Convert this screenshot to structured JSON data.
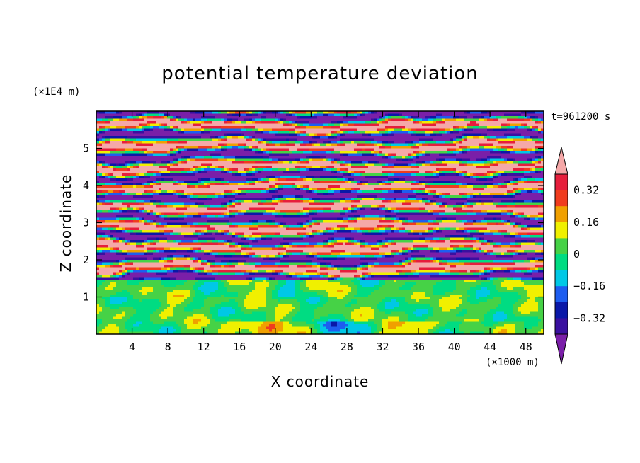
{
  "chart_data": {
    "type": "heatmap",
    "title": "potential temperature deviation",
    "xlabel": "X coordinate",
    "ylabel": "Z coordinate",
    "x_unit": "(×1000 m)",
    "y_unit": "(×1E4 m)",
    "time_label": "t=961200 s",
    "x_range": [
      0,
      50
    ],
    "y_range": [
      0,
      6
    ],
    "x_ticks": [
      4,
      8,
      12,
      16,
      20,
      24,
      28,
      32,
      36,
      40,
      44,
      48
    ],
    "y_ticks": [
      1,
      2,
      3,
      4,
      5
    ],
    "colorbar": {
      "levels": [
        -0.4,
        -0.32,
        -0.24,
        -0.16,
        -0.08,
        0,
        0.08,
        0.16,
        0.24,
        0.32,
        0.4
      ],
      "colors": [
        "#7a1fa8",
        "#3a10a0",
        "#0a18a8",
        "#1d5df0",
        "#00c8e6",
        "#00dc82",
        "#46d246",
        "#f0f000",
        "#f0a000",
        "#f03c1e",
        "#e61e3c",
        "#f5a8a8"
      ],
      "labels": [
        "0.32",
        "0.16",
        "0",
        "-0.16",
        "-0.32"
      ],
      "label_values": [
        0.32,
        0.16,
        0,
        -0.16,
        -0.32
      ],
      "extend": "both"
    }
  }
}
